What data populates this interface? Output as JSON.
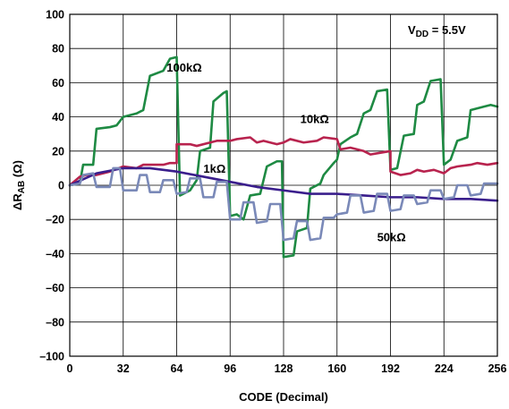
{
  "chart_data": {
    "type": "line",
    "xlabel": "CODE (Decimal)",
    "ylabel_main": "ΔR",
    "ylabel_sub": "AB",
    "ylabel_unit": " (Ω)",
    "xlim": [
      0,
      256
    ],
    "ylim": [
      -100,
      100
    ],
    "xticks": [
      0,
      32,
      64,
      96,
      128,
      160,
      192,
      224,
      256
    ],
    "yticks": [
      100,
      80,
      60,
      40,
      20,
      0,
      -20,
      -40,
      -60,
      -80,
      -100
    ],
    "grid": true,
    "annotation": {
      "main": "V",
      "sub": "DD",
      "rest": " = 5.5V"
    },
    "series": [
      {
        "name": "100kΩ",
        "color": "#1e8a43",
        "points": [
          [
            0,
            0
          ],
          [
            6,
            1
          ],
          [
            8,
            12
          ],
          [
            14,
            12
          ],
          [
            16,
            33
          ],
          [
            24,
            34
          ],
          [
            28,
            35
          ],
          [
            32,
            40
          ],
          [
            40,
            42
          ],
          [
            44,
            44
          ],
          [
            48,
            64
          ],
          [
            56,
            67
          ],
          [
            60,
            74
          ],
          [
            64,
            75
          ],
          [
            66,
            -6
          ],
          [
            72,
            -3
          ],
          [
            76,
            3
          ],
          [
            78,
            20
          ],
          [
            84,
            22
          ],
          [
            86,
            49
          ],
          [
            92,
            54
          ],
          [
            94,
            55
          ],
          [
            96,
            -18
          ],
          [
            100,
            -17
          ],
          [
            104,
            -20
          ],
          [
            108,
            -6
          ],
          [
            114,
            -5
          ],
          [
            118,
            11
          ],
          [
            124,
            14
          ],
          [
            127,
            14
          ],
          [
            128,
            -42
          ],
          [
            134,
            -41
          ],
          [
            136,
            -27
          ],
          [
            142,
            -25
          ],
          [
            144,
            -2
          ],
          [
            150,
            1
          ],
          [
            152,
            6
          ],
          [
            158,
            13
          ],
          [
            160,
            15
          ],
          [
            162,
            24
          ],
          [
            168,
            28
          ],
          [
            172,
            30
          ],
          [
            176,
            42
          ],
          [
            180,
            44
          ],
          [
            184,
            55
          ],
          [
            190,
            56
          ],
          [
            192,
            9
          ],
          [
            196,
            10
          ],
          [
            200,
            29
          ],
          [
            206,
            30
          ],
          [
            208,
            47
          ],
          [
            212,
            49
          ],
          [
            216,
            61
          ],
          [
            222,
            62
          ],
          [
            224,
            12
          ],
          [
            228,
            15
          ],
          [
            232,
            26
          ],
          [
            238,
            28
          ],
          [
            240,
            44
          ],
          [
            248,
            46
          ],
          [
            252,
            47
          ],
          [
            256,
            46
          ]
        ]
      },
      {
        "name": "10kΩ",
        "color": "#b8234e",
        "points": [
          [
            0,
            0
          ],
          [
            6,
            5
          ],
          [
            10,
            6
          ],
          [
            16,
            6
          ],
          [
            24,
            8
          ],
          [
            32,
            11
          ],
          [
            40,
            10
          ],
          [
            44,
            12
          ],
          [
            56,
            12
          ],
          [
            60,
            13
          ],
          [
            64,
            13
          ],
          [
            64,
            24
          ],
          [
            72,
            24
          ],
          [
            76,
            23
          ],
          [
            84,
            25
          ],
          [
            88,
            26
          ],
          [
            96,
            26
          ],
          [
            100,
            27
          ],
          [
            108,
            28
          ],
          [
            112,
            25
          ],
          [
            116,
            26
          ],
          [
            120,
            25
          ],
          [
            124,
            24
          ],
          [
            128,
            25
          ],
          [
            132,
            27
          ],
          [
            140,
            25
          ],
          [
            148,
            26
          ],
          [
            152,
            28
          ],
          [
            160,
            27
          ],
          [
            162,
            21
          ],
          [
            168,
            22
          ],
          [
            176,
            20
          ],
          [
            180,
            18
          ],
          [
            186,
            19
          ],
          [
            192,
            20
          ],
          [
            192,
            8
          ],
          [
            198,
            6
          ],
          [
            204,
            7
          ],
          [
            208,
            9
          ],
          [
            212,
            8
          ],
          [
            218,
            9
          ],
          [
            224,
            7
          ],
          [
            228,
            10
          ],
          [
            232,
            11
          ],
          [
            240,
            12
          ],
          [
            244,
            13
          ],
          [
            250,
            12
          ],
          [
            256,
            13
          ]
        ]
      },
      {
        "name": "1kΩ",
        "color": "#3a1e8c",
        "points": [
          [
            0,
            0
          ],
          [
            16,
            7
          ],
          [
            32,
            10
          ],
          [
            48,
            10
          ],
          [
            64,
            8
          ],
          [
            80,
            5
          ],
          [
            96,
            2
          ],
          [
            112,
            -1
          ],
          [
            128,
            -3
          ],
          [
            144,
            -5
          ],
          [
            160,
            -5
          ],
          [
            176,
            -6
          ],
          [
            192,
            -7
          ],
          [
            208,
            -7
          ],
          [
            224,
            -8
          ],
          [
            240,
            -8
          ],
          [
            256,
            -9
          ]
        ]
      },
      {
        "name": "50kΩ",
        "color": "#7a89b8",
        "points": [
          [
            0,
            0
          ],
          [
            6,
            1
          ],
          [
            8,
            6
          ],
          [
            14,
            7
          ],
          [
            16,
            -1
          ],
          [
            24,
            -1
          ],
          [
            26,
            10
          ],
          [
            30,
            10
          ],
          [
            32,
            -3
          ],
          [
            40,
            -3
          ],
          [
            42,
            6
          ],
          [
            46,
            6
          ],
          [
            48,
            -4
          ],
          [
            54,
            -4
          ],
          [
            56,
            3
          ],
          [
            62,
            3
          ],
          [
            64,
            -5
          ],
          [
            70,
            -4
          ],
          [
            72,
            4
          ],
          [
            78,
            4
          ],
          [
            80,
            -7
          ],
          [
            86,
            -7
          ],
          [
            88,
            2
          ],
          [
            94,
            2
          ],
          [
            96,
            -20
          ],
          [
            102,
            -20
          ],
          [
            104,
            -10
          ],
          [
            110,
            -10
          ],
          [
            112,
            -22
          ],
          [
            118,
            -21
          ],
          [
            120,
            -11
          ],
          [
            126,
            -11
          ],
          [
            128,
            -32
          ],
          [
            134,
            -31
          ],
          [
            136,
            -21
          ],
          [
            142,
            -21
          ],
          [
            144,
            -32
          ],
          [
            150,
            -31
          ],
          [
            152,
            -19
          ],
          [
            158,
            -19
          ],
          [
            160,
            -17
          ],
          [
            166,
            -16
          ],
          [
            168,
            -6
          ],
          [
            174,
            -6
          ],
          [
            176,
            -16
          ],
          [
            182,
            -15
          ],
          [
            184,
            -5
          ],
          [
            190,
            -5
          ],
          [
            192,
            -15
          ],
          [
            198,
            -14
          ],
          [
            200,
            -6
          ],
          [
            206,
            -6
          ],
          [
            208,
            -11
          ],
          [
            214,
            -10
          ],
          [
            216,
            -3
          ],
          [
            222,
            -3
          ],
          [
            224,
            -8
          ],
          [
            230,
            -7
          ],
          [
            232,
            0
          ],
          [
            238,
            0
          ],
          [
            240,
            -6
          ],
          [
            246,
            -5
          ],
          [
            248,
            1
          ],
          [
            256,
            1
          ]
        ]
      }
    ],
    "labels": [
      {
        "text": "100kΩ",
        "series": "100kΩ",
        "at": [
          58,
          69
        ]
      },
      {
        "text": "10kΩ",
        "series": "10kΩ",
        "at": [
          138,
          39
        ]
      },
      {
        "text": "1kΩ",
        "series": "1kΩ",
        "at": [
          80,
          10
        ]
      },
      {
        "text": "50kΩ",
        "series": "50kΩ",
        "at": [
          184,
          -30
        ]
      }
    ]
  }
}
